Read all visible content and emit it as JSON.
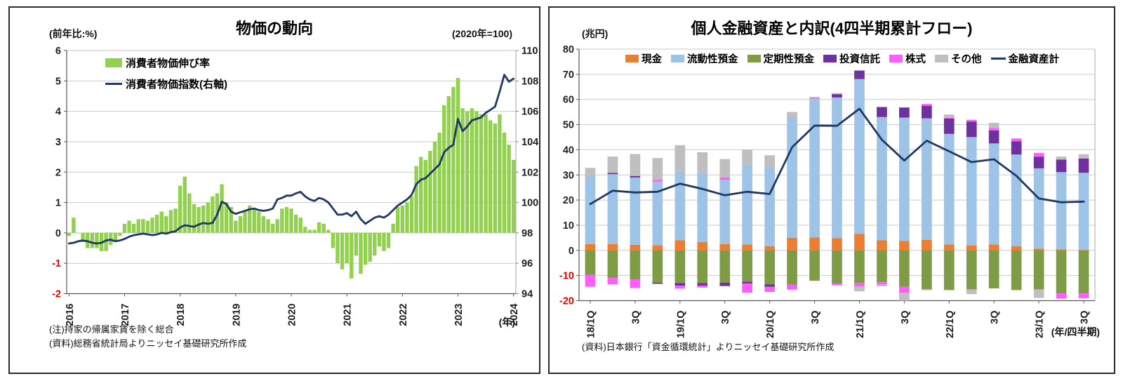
{
  "chart_data": [
    {
      "type": "bar+line",
      "title": "物価の動向",
      "left_axis": {
        "label": "(前年比:%)",
        "min": -2,
        "max": 6,
        "step": 1
      },
      "right_axis": {
        "label": "(2020年=100)",
        "min": 94,
        "max": 110,
        "step": 2
      },
      "x_axis": {
        "unit_label": "(年)",
        "start": "2016-01",
        "frequency": "monthly",
        "tick_labels": [
          "2016",
          "2017",
          "2018",
          "2019",
          "2020",
          "2021",
          "2022",
          "2023",
          "2024"
        ],
        "months_per_tick": 12
      },
      "grid": true,
      "series": [
        {
          "name": "消費者物価伸び率",
          "type": "bar",
          "axis": "left",
          "color": "#92D050",
          "values": [
            -0.1,
            0.5,
            0.0,
            -0.3,
            -0.5,
            -0.5,
            -0.5,
            -0.6,
            -0.6,
            -0.4,
            -0.3,
            -0.1,
            0.3,
            0.4,
            0.3,
            0.45,
            0.45,
            0.4,
            0.5,
            0.6,
            0.7,
            0.55,
            0.75,
            0.8,
            1.55,
            1.85,
            1.3,
            0.95,
            0.85,
            0.9,
            1.0,
            1.2,
            1.3,
            1.6,
            1.0,
            0.85,
            0.4,
            0.55,
            0.7,
            0.9,
            0.8,
            0.7,
            0.55,
            0.45,
            0.3,
            0.45,
            0.8,
            0.85,
            0.8,
            0.6,
            0.5,
            0.2,
            0.1,
            0.1,
            0.35,
            0.3,
            0.1,
            -0.5,
            -1.0,
            -1.2,
            -1.0,
            -1.5,
            -0.75,
            -1.35,
            -1.05,
            -0.95,
            -0.75,
            -0.45,
            -0.6,
            -0.5,
            0.3,
            0.85,
            0.9,
            1.0,
            1.2,
            2.2,
            2.5,
            2.4,
            2.7,
            3.0,
            3.3,
            4.2,
            4.5,
            4.8,
            5.1,
            4.1,
            4.0,
            4.1,
            4.0,
            3.9,
            3.9,
            3.7,
            3.6,
            3.9,
            3.3,
            2.9,
            2.4
          ]
        },
        {
          "name": "消費者物価指数(右軸)",
          "type": "line",
          "axis": "right",
          "color": "#1F3864",
          "values": [
            97.3,
            97.35,
            97.45,
            97.5,
            97.45,
            97.35,
            97.3,
            97.35,
            97.5,
            97.55,
            97.45,
            97.5,
            97.6,
            97.75,
            97.85,
            97.9,
            97.95,
            97.9,
            97.85,
            97.9,
            98.0,
            97.95,
            98.05,
            98.1,
            98.35,
            98.5,
            98.45,
            98.4,
            98.55,
            98.65,
            98.6,
            98.65,
            99.2,
            100.05,
            99.9,
            99.4,
            99.25,
            99.35,
            99.45,
            99.55,
            99.6,
            99.5,
            99.45,
            99.5,
            99.6,
            100.2,
            100.3,
            100.45,
            100.45,
            100.6,
            100.7,
            100.4,
            100.2,
            100.1,
            100.3,
            100.2,
            100.0,
            99.6,
            99.2,
            99.2,
            99.3,
            99.1,
            99.4,
            98.9,
            98.6,
            98.8,
            99.0,
            99.1,
            99.0,
            99.2,
            99.5,
            99.8,
            100.0,
            100.2,
            100.5,
            101.2,
            101.5,
            101.6,
            101.9,
            102.2,
            102.5,
            103.3,
            103.6,
            103.8,
            105.5,
            104.7,
            105.0,
            105.4,
            105.5,
            105.6,
            105.9,
            106.1,
            106.3,
            107.3,
            108.4,
            107.95,
            108.15
          ]
        }
      ],
      "notes": [
        "(注)持家の帰属家賃を除く総合",
        "(資料)総務省統計局よりニッセイ基礎研究所作成"
      ]
    },
    {
      "type": "stacked-bar+line",
      "title": "個人金融資産と内訳(4四半期累計フロー)",
      "y_axis": {
        "label": "(兆円)",
        "min": -20,
        "max": 80,
        "step": 10
      },
      "x_axis": {
        "unit_label": "(年/四半期)",
        "categories": [
          "18/1Q",
          "18/2Q",
          "18/3Q",
          "18/4Q",
          "19/1Q",
          "19/2Q",
          "19/3Q",
          "19/4Q",
          "20/1Q",
          "20/2Q",
          "20/3Q",
          "20/4Q",
          "21/1Q",
          "21/2Q",
          "21/3Q",
          "21/4Q",
          "22/1Q",
          "22/2Q",
          "22/3Q",
          "22/4Q",
          "23/1Q",
          "23/2Q",
          "23/3Q"
        ],
        "tick_every": 2,
        "tick_labels": [
          "18/1Q",
          "3Q",
          "19/1Q",
          "3Q",
          "20/1Q",
          "3Q",
          "21/1Q",
          "3Q",
          "22/1Q",
          "3Q",
          "23/1Q",
          "3Q"
        ]
      },
      "grid": true,
      "stack_series": [
        {
          "name": "現金",
          "color": "#ED7D31",
          "values": [
            2.5,
            2.5,
            2.2,
            2.0,
            4.0,
            3.3,
            2.5,
            2.3,
            1.7,
            5.0,
            5.1,
            4.9,
            6.5,
            4.0,
            3.7,
            4.2,
            2.3,
            1.9,
            2.3,
            1.7,
            0.7,
            0.4,
            0.2
          ]
        },
        {
          "name": "流動性預金",
          "color": "#9DC3E6",
          "values": [
            27.0,
            27.8,
            26.8,
            25.3,
            27.2,
            27.2,
            25.5,
            31.7,
            31.3,
            47.8,
            55.2,
            55.9,
            61.6,
            49.0,
            49.1,
            48.3,
            44.0,
            43.1,
            40.2,
            36.4,
            31.9,
            30.7,
            30.6
          ]
        },
        {
          "name": "定期性預金",
          "color": "#7D9C45",
          "values": [
            -9.8,
            -11.0,
            -11.5,
            -12.8,
            -13.0,
            -13.0,
            -12.8,
            -12.5,
            -13.5,
            -13.7,
            -12.1,
            -13.2,
            -12.9,
            -12.7,
            -14.5,
            -15.5,
            -15.8,
            -15.5,
            -15.1,
            -15.8,
            -15.5,
            -17.1,
            -17.1
          ]
        },
        {
          "name": "投資信託",
          "color": "#7030A0",
          "values": [
            0,
            0.5,
            0.6,
            -0.5,
            -1.0,
            -1.0,
            -1.4,
            -0.7,
            -1.0,
            0,
            0,
            1.3,
            3.4,
            4.0,
            4.0,
            5.0,
            6.1,
            6.2,
            5.2,
            5.3,
            4.6,
            5.0,
            5.7
          ]
        },
        {
          "name": "株式",
          "color": "#FF5EFF",
          "values": [
            -4.7,
            -2.5,
            -3.5,
            0.7,
            -1.2,
            -0.8,
            1.0,
            -3.6,
            -2.0,
            -1.9,
            0.3,
            -0.7,
            -1.5,
            -0.9,
            -2.3,
            0.7,
            0.3,
            0.7,
            1.0,
            1.1,
            1.5,
            -2.1,
            -1.9
          ]
        },
        {
          "name": "その他",
          "color": "#BFBFBF",
          "values": [
            3.3,
            6.5,
            8.7,
            8.7,
            10.6,
            8.5,
            7.3,
            6.0,
            4.8,
            2.2,
            0.4,
            0.4,
            -1.9,
            -0.7,
            -3.2,
            -0.3,
            1.3,
            -1.9,
            2.0,
            0.0,
            -3.4,
            1.2,
            1.7
          ]
        }
      ],
      "line_series": {
        "name": "金融資産計",
        "color": "#1F3864",
        "values": [
          18.4,
          23.7,
          23.0,
          23.3,
          26.5,
          24.4,
          21.9,
          23.3,
          22.4,
          41.0,
          49.6,
          49.5,
          56.3,
          44.0,
          35.7,
          43.6,
          39.4,
          35.1,
          36.2,
          29.6,
          20.6,
          19.1,
          19.4
        ]
      },
      "note": "(資料)日本銀行「資金循環統計」よりニッセイ基礎研究所作成"
    }
  ]
}
